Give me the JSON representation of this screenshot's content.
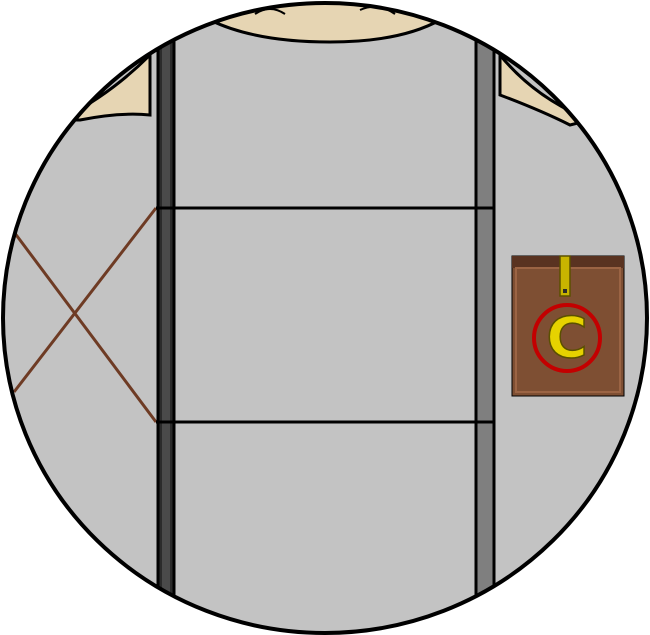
{
  "scene": {
    "colors": {
      "background": "#ffffff",
      "body_gray": "#c3c3c3",
      "outline": "#000000",
      "strap_dark": "#2b2b2b",
      "strap_mid": "#7f7f7f",
      "skin": "#e6d5b3",
      "cord_brown": "#6e3b24",
      "pouch_brown": "#7e4f33",
      "pouch_flap": "#593321",
      "emblem_red": "#c30000",
      "emblem_gold": "#e6d200"
    },
    "badge": {
      "letter": "C"
    },
    "icons": [
      "character-torso",
      "harness-straps",
      "crossed-cords",
      "pouch-with-emblem"
    ]
  }
}
